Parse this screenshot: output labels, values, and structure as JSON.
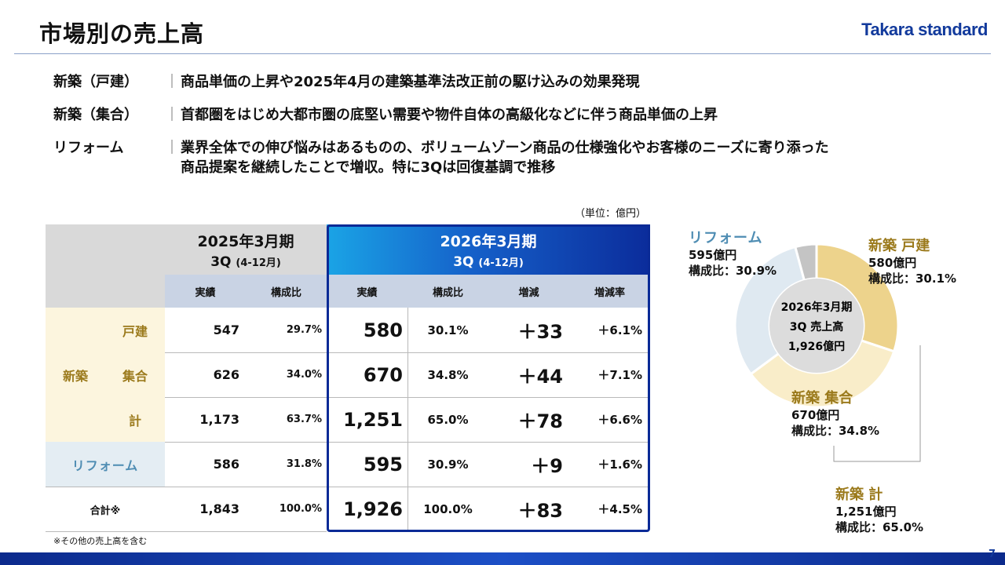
{
  "header": {
    "title": "市場別の売上高",
    "logo": "Takara standard"
  },
  "bullets": [
    {
      "label": "新築（戸建）",
      "sep": "｜",
      "text": "商品単価の上昇や2025年4月の建築基準法改正前の駆け込みの効果発現"
    },
    {
      "label": "新築（集合）",
      "sep": "｜",
      "text": "首都圏をはじめ大都市圏の底堅い需要や物件自体の高級化などに伴う商品単価の上昇"
    },
    {
      "label": "リフォーム",
      "sep": "｜",
      "text": "業界全体での伸び悩みはあるものの、ボリュームゾーン商品の仕様強化やお客様のニーズに寄り添った",
      "text2": "商品提案を継続したことで増収。特に3Qは回復基調で推移"
    }
  ],
  "unit_note": "（単位：億円）",
  "table": {
    "fy2025": {
      "line1": "2025年3月期",
      "line2": "3Q",
      "line2b": "(4-12月)"
    },
    "fy2026": {
      "line1": "2026年3月期",
      "line2": "3Q",
      "line2b": "(4-12月)"
    },
    "subheaders": [
      "実績",
      "構成比",
      "実績",
      "構成比",
      "増減",
      "増減率"
    ],
    "group_label": "新築",
    "rows": [
      {
        "label": "戸建",
        "prev": "547",
        "prev_pct": "29.7%",
        "cur": "580",
        "cur_pct": "30.1%",
        "chg": "＋33",
        "rate": "＋6.1%"
      },
      {
        "label": "集合",
        "prev": "626",
        "prev_pct": "34.0%",
        "cur": "670",
        "cur_pct": "34.8%",
        "chg": "＋44",
        "rate": "＋7.1%"
      },
      {
        "label": "計",
        "prev": "1,173",
        "prev_pct": "63.7%",
        "cur": "1,251",
        "cur_pct": "65.0%",
        "chg": "＋78",
        "rate": "＋6.6%"
      },
      {
        "label": "リフォーム",
        "prev": "586",
        "prev_pct": "31.8%",
        "cur": "595",
        "cur_pct": "30.9%",
        "chg": "＋9",
        "rate": "＋1.6%"
      },
      {
        "label": "合計※",
        "prev": "1,843",
        "prev_pct": "100.0%",
        "cur": "1,926",
        "cur_pct": "100.0%",
        "chg": "＋83",
        "rate": "＋4.5%"
      }
    ]
  },
  "footnote": "※その他の売上高を含む",
  "chart_data": {
    "type": "pie",
    "center_line1": "2026年3月期",
    "center_line2": "3Q 売上高",
    "center_line3": "1,926億円",
    "slices": [
      {
        "name": "新築 戸建",
        "value": 580,
        "amount": "580億円",
        "share": "構成比：30.1%",
        "color": "#edd38c"
      },
      {
        "name": "新築 集合",
        "value": 670,
        "amount": "670億円",
        "share": "構成比：34.8%",
        "color": "#f9edc9"
      },
      {
        "name": "リフォーム",
        "value": 595,
        "amount": "595億円",
        "share": "構成比：30.9%",
        "color": "#dfe9f1"
      },
      {
        "name": "",
        "value": 81,
        "color": "#c4c4c4"
      }
    ],
    "total_label": {
      "name": "新築 計",
      "amount": "1,251億円",
      "share": "構成比：65.0%"
    },
    "label_colors": {
      "shinchiku": "#9b7a1c",
      "reform": "#4f8db3"
    }
  },
  "page_number": "7"
}
